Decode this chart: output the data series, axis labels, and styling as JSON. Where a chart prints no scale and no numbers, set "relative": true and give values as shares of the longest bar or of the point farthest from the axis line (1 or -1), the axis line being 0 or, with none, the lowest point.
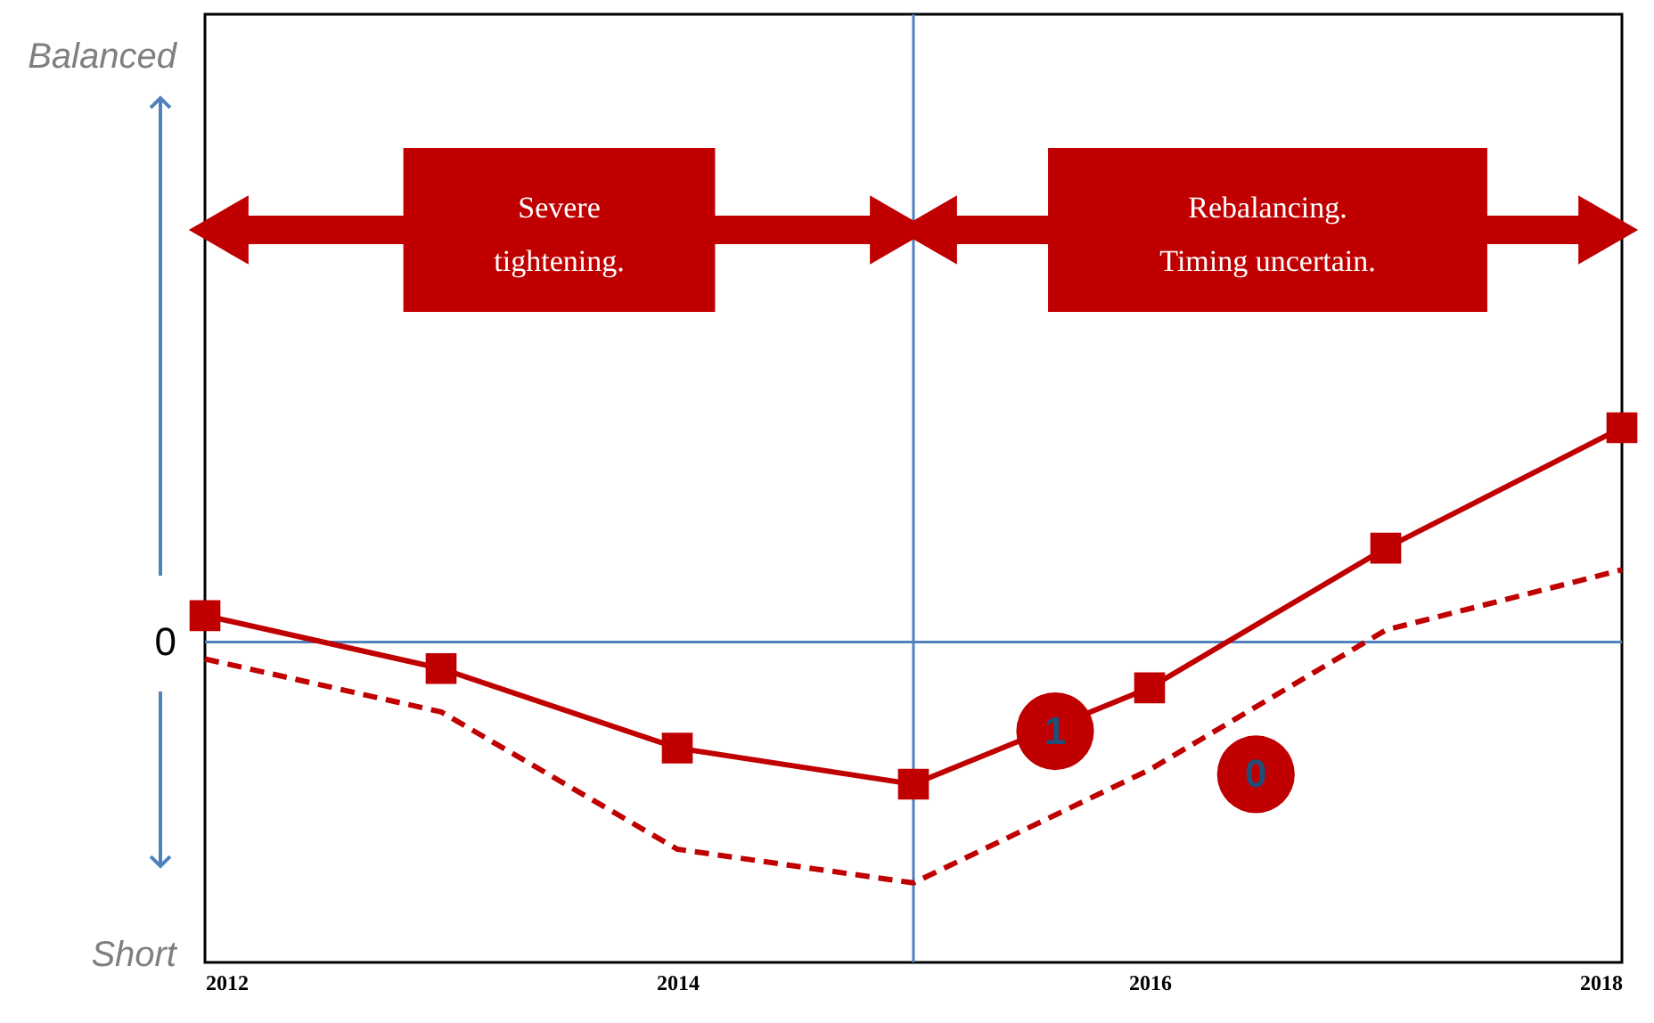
{
  "chart_data": {
    "type": "line",
    "relative": true,
    "x": [
      2012,
      2013,
      2014,
      2015,
      2016,
      2017,
      2018
    ],
    "xlim": [
      2012,
      2018
    ],
    "xticks": [
      2012,
      2014,
      2016,
      2018
    ],
    "series": [
      {
        "name": "1",
        "color": "#c00000",
        "marker": "square",
        "line_style": "solid",
        "values": [
          0.11,
          -0.11,
          -0.44,
          -0.59,
          -0.19,
          0.39,
          0.89
        ]
      },
      {
        "name": "0",
        "color": "#c00000",
        "marker": "none",
        "line_style": "dashed",
        "values": [
          -0.07,
          -0.29,
          -0.86,
          -1,
          -0.53,
          0.05,
          0.3
        ]
      }
    ],
    "ref_lines": [
      {
        "axis": "y",
        "value": 0,
        "label": "0",
        "color": "#4f81bd"
      },
      {
        "axis": "x",
        "value": 2015,
        "label": null,
        "color": "#4f81bd"
      }
    ],
    "annotations": [
      "Balanced",
      "Short",
      "Severe\ntightening.",
      "Rebalancing.\nTiming uncertain."
    ],
    "tick_labels": "x",
    "grid": false
  }
}
